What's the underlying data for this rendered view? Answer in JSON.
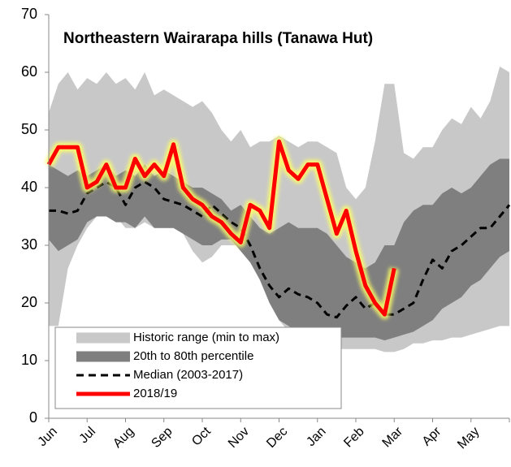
{
  "chart_data": {
    "type": "band-line",
    "title": "Northeastern Wairarapa hills (Tanawa Hut)",
    "categories": [
      "Jun",
      null,
      null,
      null,
      "Jul",
      null,
      null,
      null,
      "Aug",
      null,
      null,
      null,
      "Sep",
      null,
      null,
      null,
      "Oct",
      null,
      null,
      null,
      "Nov",
      null,
      null,
      null,
      "Dec",
      null,
      null,
      null,
      "Jan",
      null,
      null,
      null,
      "Feb",
      null,
      null,
      null,
      "Mar",
      null,
      null,
      null,
      "Apr",
      null,
      null,
      null,
      "May",
      null,
      null,
      null,
      null
    ],
    "ylim": [
      0,
      70
    ],
    "yticks": [
      0,
      10,
      20,
      30,
      40,
      50,
      60,
      70
    ],
    "series": [
      {
        "name": "Historic range (min to max)",
        "type": "band",
        "color": "#c8c8c8",
        "low": [
          16,
          16,
          26,
          30,
          33,
          35,
          36,
          35,
          33,
          33,
          34,
          33,
          33,
          33,
          32,
          29,
          27,
          28,
          30,
          30,
          30,
          29,
          26,
          21,
          17,
          15,
          14,
          13,
          12.5,
          12.5,
          12,
          12,
          12,
          12,
          12,
          11.5,
          11.5,
          12,
          13,
          13,
          13.5,
          13.5,
          14,
          14,
          14.5,
          15,
          15.5,
          16,
          16
        ],
        "high": [
          53,
          58,
          60,
          57,
          59,
          58,
          60,
          58,
          59,
          57,
          60,
          56,
          57,
          56,
          55,
          54,
          55,
          53,
          50,
          48,
          50,
          47,
          48,
          48,
          49,
          48,
          47,
          48,
          48,
          47,
          46,
          40,
          38,
          40,
          48,
          58,
          58,
          46,
          45,
          47,
          47,
          50,
          52,
          51,
          54,
          52,
          55,
          61,
          60
        ]
      },
      {
        "name": "20th to 80th percentile",
        "type": "band",
        "color": "#7f7f7f",
        "low": [
          31,
          29,
          30,
          31,
          34,
          35,
          35,
          34,
          34,
          33,
          35,
          33,
          33,
          33,
          32,
          31,
          30,
          30,
          31,
          31,
          29,
          27,
          24,
          20,
          17,
          16,
          15,
          15,
          14,
          14,
          14,
          14,
          14,
          14,
          14,
          13.5,
          14,
          14.5,
          15,
          16,
          17,
          19,
          20,
          21,
          23,
          24,
          26,
          28,
          29
        ],
        "high": [
          44,
          43,
          42,
          43,
          42,
          43,
          44,
          42,
          43,
          42,
          44,
          42,
          43,
          42,
          41,
          40,
          40,
          39,
          38,
          36,
          37,
          35,
          33,
          32,
          33,
          34,
          33,
          33,
          33,
          32,
          30,
          28,
          27,
          26,
          27,
          30,
          30,
          34,
          36,
          37,
          37,
          39,
          40,
          39,
          40,
          42,
          44,
          45,
          45
        ]
      },
      {
        "name": "Median (2003-2017)",
        "type": "line",
        "dashed": true,
        "color": "#000000",
        "values": [
          36,
          36,
          35.5,
          36,
          39,
          40,
          41,
          40,
          37,
          40,
          41,
          40,
          38,
          37.5,
          37,
          36,
          35,
          37,
          35.5,
          34,
          33,
          30,
          26,
          23,
          21,
          22.5,
          21.5,
          21,
          20,
          18,
          17.5,
          19.5,
          21,
          19,
          20,
          18,
          18,
          19,
          20,
          24,
          27.5,
          26,
          29,
          30,
          31.5,
          33,
          33,
          35,
          37
        ]
      },
      {
        "name": "2018/19",
        "type": "line",
        "glow": true,
        "color": "#ff0000",
        "values": [
          44,
          47,
          47,
          47,
          40,
          41,
          44,
          40,
          40,
          45,
          42,
          44,
          42,
          47.5,
          40,
          38,
          37,
          35,
          34,
          32,
          30.5,
          37,
          36,
          33,
          48,
          43,
          41.5,
          44,
          44,
          38,
          32,
          36,
          29,
          23,
          20,
          18,
          26,
          null,
          null,
          null,
          null,
          null,
          null,
          null,
          null,
          null,
          null,
          null,
          null
        ]
      }
    ]
  }
}
